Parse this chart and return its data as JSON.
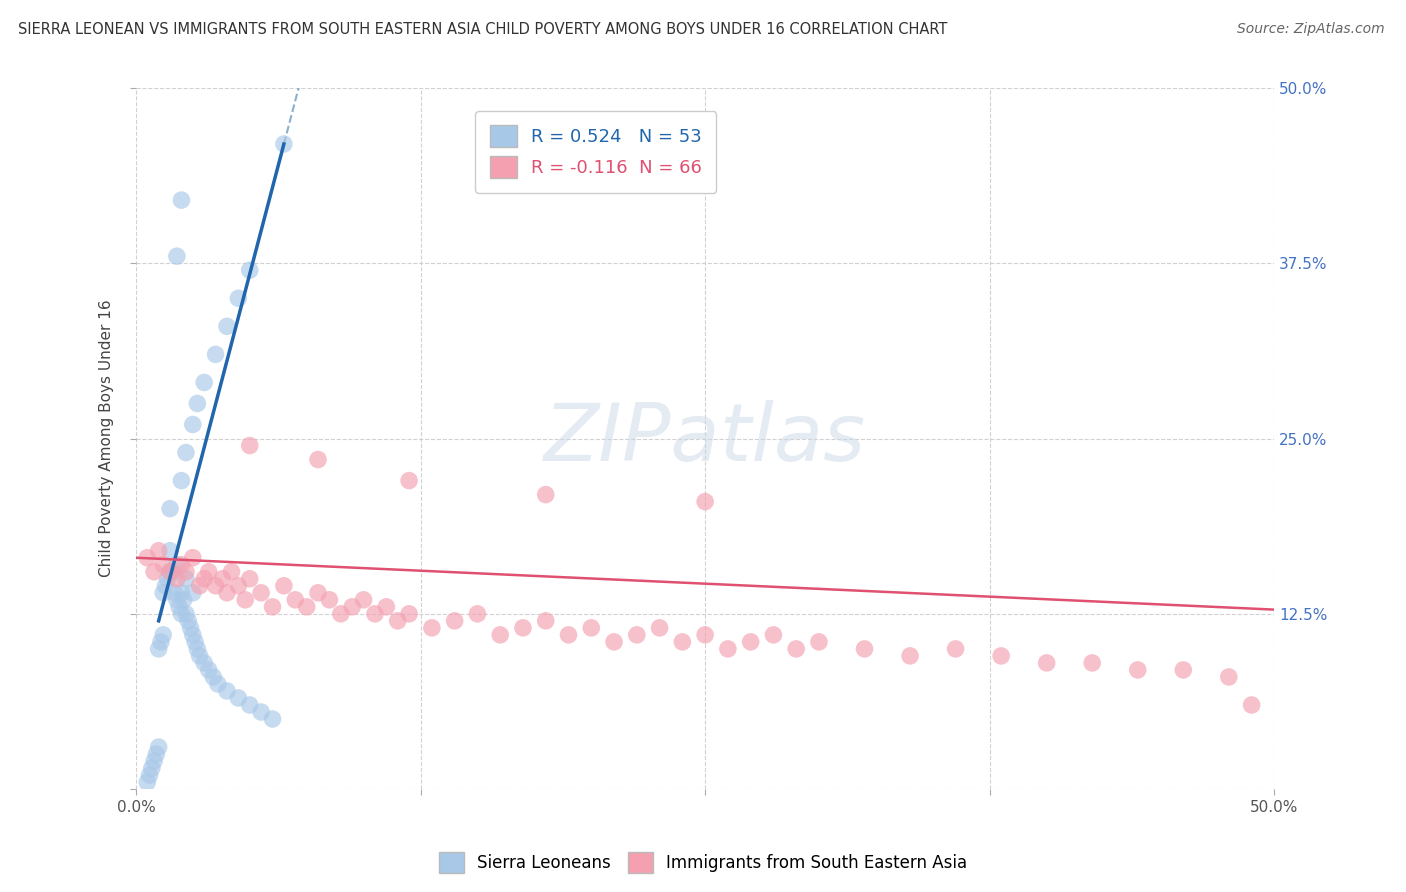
{
  "title": "SIERRA LEONEAN VS IMMIGRANTS FROM SOUTH EASTERN ASIA CHILD POVERTY AMONG BOYS UNDER 16 CORRELATION CHART",
  "source": "Source: ZipAtlas.com",
  "ylabel": "Child Poverty Among Boys Under 16",
  "xlim": [
    0.0,
    0.5
  ],
  "ylim": [
    0.0,
    0.5
  ],
  "R_blue": 0.524,
  "N_blue": 53,
  "R_pink": -0.116,
  "N_pink": 66,
  "blue_color": "#a8c8e8",
  "pink_color": "#f4a0b0",
  "blue_line_color": "#2166ac",
  "pink_line_color": "#e05070",
  "blue_dash_color": "#8ab0d0",
  "watermark": "ZIPatlas",
  "blue_scatter_x": [
    0.005,
    0.006,
    0.007,
    0.008,
    0.009,
    0.01,
    0.01,
    0.011,
    0.012,
    0.012,
    0.013,
    0.014,
    0.015,
    0.015,
    0.016,
    0.017,
    0.018,
    0.018,
    0.019,
    0.02,
    0.02,
    0.021,
    0.022,
    0.022,
    0.023,
    0.024,
    0.025,
    0.025,
    0.026,
    0.027,
    0.028,
    0.03,
    0.032,
    0.034,
    0.036,
    0.04,
    0.045,
    0.05,
    0.055,
    0.06,
    0.015,
    0.02,
    0.022,
    0.025,
    0.027,
    0.03,
    0.035,
    0.04,
    0.045,
    0.05,
    0.018,
    0.02,
    0.065
  ],
  "blue_scatter_y": [
    0.005,
    0.01,
    0.015,
    0.02,
    0.025,
    0.03,
    0.1,
    0.105,
    0.11,
    0.14,
    0.145,
    0.15,
    0.155,
    0.17,
    0.155,
    0.14,
    0.135,
    0.16,
    0.13,
    0.125,
    0.14,
    0.135,
    0.125,
    0.15,
    0.12,
    0.115,
    0.11,
    0.14,
    0.105,
    0.1,
    0.095,
    0.09,
    0.085,
    0.08,
    0.075,
    0.07,
    0.065,
    0.06,
    0.055,
    0.05,
    0.2,
    0.22,
    0.24,
    0.26,
    0.275,
    0.29,
    0.31,
    0.33,
    0.35,
    0.37,
    0.38,
    0.42,
    0.46
  ],
  "pink_scatter_x": [
    0.005,
    0.008,
    0.01,
    0.012,
    0.015,
    0.018,
    0.02,
    0.022,
    0.025,
    0.028,
    0.03,
    0.032,
    0.035,
    0.038,
    0.04,
    0.042,
    0.045,
    0.048,
    0.05,
    0.055,
    0.06,
    0.065,
    0.07,
    0.075,
    0.08,
    0.085,
    0.09,
    0.095,
    0.1,
    0.105,
    0.11,
    0.115,
    0.12,
    0.13,
    0.14,
    0.15,
    0.16,
    0.17,
    0.18,
    0.19,
    0.2,
    0.21,
    0.22,
    0.23,
    0.24,
    0.25,
    0.26,
    0.27,
    0.28,
    0.29,
    0.3,
    0.32,
    0.34,
    0.36,
    0.38,
    0.4,
    0.42,
    0.44,
    0.46,
    0.48,
    0.05,
    0.08,
    0.12,
    0.18,
    0.25,
    0.49
  ],
  "pink_scatter_y": [
    0.165,
    0.155,
    0.17,
    0.16,
    0.155,
    0.15,
    0.16,
    0.155,
    0.165,
    0.145,
    0.15,
    0.155,
    0.145,
    0.15,
    0.14,
    0.155,
    0.145,
    0.135,
    0.15,
    0.14,
    0.13,
    0.145,
    0.135,
    0.13,
    0.14,
    0.135,
    0.125,
    0.13,
    0.135,
    0.125,
    0.13,
    0.12,
    0.125,
    0.115,
    0.12,
    0.125,
    0.11,
    0.115,
    0.12,
    0.11,
    0.115,
    0.105,
    0.11,
    0.115,
    0.105,
    0.11,
    0.1,
    0.105,
    0.11,
    0.1,
    0.105,
    0.1,
    0.095,
    0.1,
    0.095,
    0.09,
    0.09,
    0.085,
    0.085,
    0.08,
    0.245,
    0.235,
    0.22,
    0.21,
    0.205,
    0.06
  ]
}
